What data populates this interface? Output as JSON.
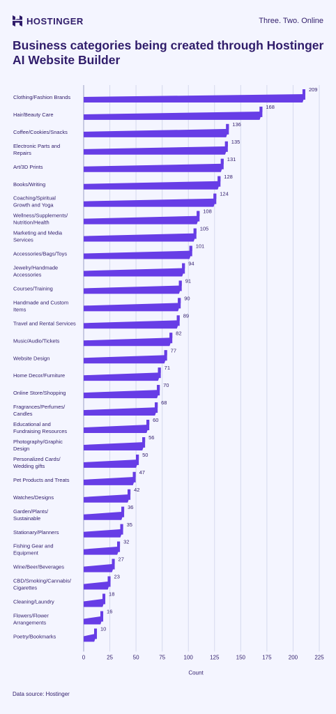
{
  "header": {
    "brand": "HOSTINGER",
    "tagline": "Three. Two. Online"
  },
  "title": "Business categories being created through Hostinger AI Website Builder",
  "source": "Data source: Hostinger",
  "colors": {
    "accent": "#673de6",
    "text": "#2f1c6a",
    "background": "#f4f5ff",
    "grid": "#d5d9ee"
  },
  "chart_data": {
    "type": "bar",
    "orientation": "horizontal",
    "xlabel": "Count",
    "ylabel": "",
    "xlim": [
      0,
      225
    ],
    "xticks": [
      0,
      25,
      50,
      75,
      100,
      125,
      150,
      175,
      200,
      225
    ],
    "grid": true,
    "categories": [
      [
        "Clothing/Fashion Brands"
      ],
      [
        "Hair/Beauty Care"
      ],
      [
        "Coffee/Cookies/Snacks"
      ],
      [
        "Electronic Parts and",
        "Repairs"
      ],
      [
        "Art/3D Prints"
      ],
      [
        "Books/Writing"
      ],
      [
        "Coaching/Spiritual",
        "Growth and Yoga"
      ],
      [
        "Wellness/Supplements/",
        "Nutrition/Health"
      ],
      [
        "Marketing and Media",
        "Services"
      ],
      [
        "Accessories/Bags/Toys"
      ],
      [
        "Jewelry/Handmade",
        "Accessories"
      ],
      [
        "Courses/Training"
      ],
      [
        "Handmade and Custom",
        "Items"
      ],
      [
        "Travel and Rental Services"
      ],
      [
        "Music/Audio/Tickets"
      ],
      [
        "Website Design"
      ],
      [
        "Home Decor/Furniture"
      ],
      [
        "Online Store/Shopping"
      ],
      [
        "Fragrances/Perfumes/",
        "Candles"
      ],
      [
        "Educational and",
        "Fundraising Resources"
      ],
      [
        "Photography/Graphic",
        "Design"
      ],
      [
        "Personalized Cards/",
        "Wedding gifts"
      ],
      [
        "Pet Products and Treats"
      ],
      [
        "Watches/Designs"
      ],
      [
        "Garden/Plants/",
        "Sustainable"
      ],
      [
        "Stationary/Planners"
      ],
      [
        "Fishing Gear and",
        "Equipment"
      ],
      [
        "Wine/Beer/Beverages"
      ],
      [
        "CBD/Smoking/Cannabis/",
        "Cigarettes"
      ],
      [
        "Cleaning/Laundry"
      ],
      [
        "Flowers/Flower",
        "Arrangements"
      ],
      [
        "Poetry/Bookmarks"
      ]
    ],
    "values": [
      209,
      168,
      136,
      135,
      131,
      128,
      124,
      108,
      105,
      101,
      94,
      91,
      90,
      89,
      82,
      77,
      71,
      70,
      68,
      60,
      56,
      50,
      47,
      42,
      36,
      35,
      32,
      27,
      23,
      18,
      16,
      10
    ]
  }
}
